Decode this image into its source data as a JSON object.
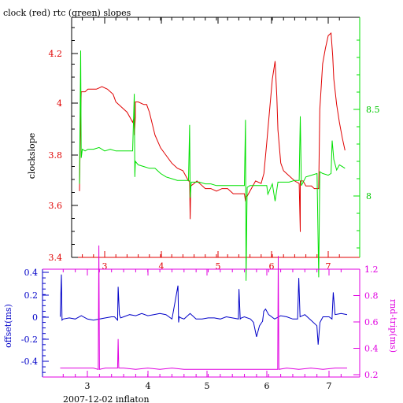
{
  "colors": {
    "clock": "#e00000",
    "rtc": "#00e000",
    "offset": "#0000c8",
    "rndtrip": "#e000e0",
    "axis_black": "#000000"
  },
  "chart_data": [
    {
      "type": "line",
      "title": "clock (red) rtc (green) slopes",
      "ylabel": "clockslope",
      "xlim": [
        2.45,
        7.35
      ],
      "ylim": [
        3.4,
        4.33
      ],
      "x_ticks": [
        "3",
        "4",
        "5",
        "6",
        "7"
      ],
      "y_ticks": [
        "3.4",
        "3.6",
        "3.8",
        "4",
        "4.2"
      ],
      "y2lim": [
        7.5,
        8.85
      ],
      "y2_ticks": [
        "8",
        "8.5"
      ],
      "series": [
        {
          "name": "clock",
          "axis": "left",
          "x": [
            2.55,
            2.57,
            2.57,
            2.58,
            2.6,
            2.65,
            2.7,
            2.75,
            2.85,
            2.95,
            3.05,
            3.15,
            3.2,
            3.3,
            3.4,
            3.45,
            3.5,
            3.53,
            3.53,
            3.55,
            3.55,
            3.6,
            3.7,
            3.75,
            3.8,
            3.9,
            4.0,
            4.1,
            4.2,
            4.3,
            4.4,
            4.5,
            4.52,
            4.53,
            4.54,
            4.6,
            4.65,
            4.7,
            4.8,
            4.9,
            5.0,
            5.1,
            5.2,
            5.3,
            5.4,
            5.5,
            5.52,
            5.53,
            5.55,
            5.6,
            5.7,
            5.8,
            5.85,
            5.9,
            5.92,
            6.0,
            6.05,
            6.08,
            6.1,
            6.15,
            6.2,
            6.3,
            6.4,
            6.48,
            6.5,
            6.5,
            6.55,
            6.6,
            6.7,
            6.75,
            6.8,
            6.83,
            6.85,
            6.9,
            6.95,
            7.0,
            7.05,
            7.08,
            7.1,
            7.15,
            7.2,
            7.25,
            7.3
          ],
          "y": [
            3.66,
            3.99,
            3.96,
            4.05,
            4.05,
            4.05,
            4.06,
            4.06,
            4.06,
            4.07,
            4.06,
            4.04,
            4.01,
            3.99,
            3.97,
            3.95,
            3.93,
            3.95,
            3.88,
            3.95,
            4.01,
            4.01,
            4.0,
            4.0,
            3.97,
            3.88,
            3.83,
            3.8,
            3.77,
            3.75,
            3.74,
            3.7,
            3.7,
            3.55,
            3.68,
            3.69,
            3.7,
            3.69,
            3.67,
            3.67,
            3.66,
            3.67,
            3.67,
            3.65,
            3.65,
            3.65,
            3.62,
            3.64,
            3.64,
            3.66,
            3.7,
            3.69,
            3.73,
            3.85,
            3.9,
            4.1,
            4.17,
            4.03,
            3.9,
            3.77,
            3.74,
            3.72,
            3.7,
            3.69,
            3.5,
            3.7,
            3.7,
            3.68,
            3.68,
            3.67,
            3.67,
            3.67,
            3.98,
            4.16,
            4.22,
            4.27,
            4.28,
            4.19,
            4.1,
            4.0,
            3.93,
            3.87,
            3.82
          ]
        },
        {
          "name": "rtc",
          "axis": "right",
          "x": [
            2.55,
            2.57,
            2.58,
            2.6,
            2.65,
            2.7,
            2.8,
            2.9,
            3.0,
            3.1,
            3.2,
            3.3,
            3.4,
            3.5,
            3.53,
            3.54,
            3.55,
            3.6,
            3.7,
            3.8,
            3.9,
            4.0,
            4.1,
            4.2,
            4.3,
            4.4,
            4.5,
            4.52,
            4.53,
            4.55,
            4.6,
            4.7,
            4.8,
            4.9,
            5.0,
            5.1,
            5.2,
            5.3,
            5.4,
            5.5,
            5.52,
            5.53,
            5.55,
            5.6,
            5.7,
            5.8,
            5.9,
            5.92,
            6.0,
            6.05,
            6.1,
            6.2,
            6.3,
            6.4,
            6.48,
            6.5,
            6.52,
            6.6,
            6.7,
            6.8,
            6.83,
            6.85,
            6.9,
            7.0,
            7.05,
            7.07,
            7.1,
            7.15,
            7.2,
            7.25,
            7.3
          ],
          "y": [
            8.07,
            8.84,
            8.22,
            8.27,
            8.26,
            8.27,
            8.27,
            8.28,
            8.26,
            8.27,
            8.26,
            8.26,
            8.26,
            8.26,
            8.59,
            8.11,
            8.2,
            8.18,
            8.17,
            8.16,
            8.16,
            8.13,
            8.11,
            8.1,
            8.09,
            8.09,
            8.09,
            8.41,
            7.99,
            8.08,
            8.08,
            8.08,
            8.07,
            8.07,
            8.06,
            8.06,
            8.06,
            8.06,
            8.06,
            8.06,
            8.44,
            7.51,
            8.05,
            8.06,
            8.06,
            8.06,
            8.06,
            8.01,
            8.07,
            7.97,
            8.08,
            8.08,
            8.08,
            8.09,
            8.09,
            8.46,
            8.06,
            8.11,
            8.12,
            8.13,
            7.53,
            8.14,
            8.13,
            8.12,
            8.13,
            8.32,
            8.21,
            8.15,
            8.18,
            8.17,
            8.16
          ]
        }
      ]
    },
    {
      "type": "line",
      "xlabel": "2007-12-02 inflaton",
      "ylabel": "offset(ms)",
      "y2label": "rnd-trip(ms)",
      "xlim": [
        2.45,
        7.35
      ],
      "ylim": [
        -0.52,
        0.42
      ],
      "x_ticks": [
        "3",
        "4",
        "5",
        "6",
        "7"
      ],
      "y_ticks": [
        "-0.4",
        "-0.2",
        "0",
        "0.2",
        "0.4"
      ],
      "y2lim": [
        0.2,
        1.2
      ],
      "y2_ticks": [
        "0.2",
        "0.4",
        "0.6",
        "0.8",
        "1",
        "1.2"
      ],
      "series": [
        {
          "name": "offset",
          "axis": "left",
          "x": [
            2.55,
            2.57,
            2.58,
            2.6,
            2.7,
            2.8,
            2.9,
            3.0,
            3.1,
            3.2,
            3.3,
            3.4,
            3.45,
            3.5,
            3.51,
            3.53,
            3.55,
            3.6,
            3.7,
            3.8,
            3.9,
            4.0,
            4.1,
            4.2,
            4.3,
            4.4,
            4.5,
            4.51,
            4.52,
            4.55,
            4.6,
            4.7,
            4.8,
            4.9,
            5.0,
            5.1,
            5.2,
            5.3,
            5.4,
            5.5,
            5.51,
            5.53,
            5.55,
            5.6,
            5.7,
            5.75,
            5.8,
            5.85,
            5.9,
            5.92,
            5.95,
            6.0,
            6.05,
            6.1,
            6.2,
            6.3,
            6.4,
            6.48,
            6.5,
            6.52,
            6.6,
            6.7,
            6.8,
            6.82,
            6.85,
            6.9,
            7.0,
            7.05,
            7.07,
            7.1,
            7.2,
            7.3
          ],
          "y": [
            0.0,
            0.38,
            -0.03,
            -0.02,
            -0.01,
            -0.02,
            0.01,
            -0.02,
            -0.03,
            -0.02,
            -0.01,
            0.0,
            0.0,
            -0.03,
            0.27,
            0.02,
            -0.01,
            0.0,
            0.02,
            0.01,
            0.03,
            0.01,
            0.02,
            0.03,
            0.02,
            -0.02,
            0.28,
            -0.05,
            0.0,
            -0.01,
            -0.02,
            0.03,
            -0.02,
            -0.02,
            -0.01,
            -0.01,
            -0.02,
            0.0,
            -0.01,
            -0.02,
            0.25,
            -0.02,
            -0.01,
            0.0,
            -0.02,
            -0.05,
            -0.18,
            -0.08,
            -0.04,
            0.05,
            0.07,
            0.02,
            0.0,
            -0.02,
            0.01,
            0.0,
            -0.02,
            -0.02,
            0.35,
            0.0,
            0.02,
            -0.03,
            -0.08,
            -0.25,
            -0.05,
            0.0,
            0.0,
            -0.02,
            0.22,
            0.02,
            0.03,
            0.02
          ]
        },
        {
          "name": "rnd-trip",
          "axis": "right",
          "x": [
            2.55,
            2.7,
            2.9,
            3.1,
            3.18,
            3.19,
            3.2,
            3.3,
            3.45,
            3.5,
            3.51,
            3.52,
            3.6,
            3.8,
            4.0,
            4.2,
            4.4,
            4.6,
            4.8,
            5.0,
            5.2,
            5.4,
            5.6,
            5.8,
            6.0,
            6.15,
            6.16,
            6.17,
            6.3,
            6.5,
            6.7,
            6.9,
            7.1,
            7.3
          ],
          "y": [
            0.25,
            0.25,
            0.25,
            0.25,
            0.24,
            1.18,
            0.24,
            0.25,
            0.25,
            0.25,
            0.47,
            0.25,
            0.25,
            0.24,
            0.25,
            0.24,
            0.25,
            0.24,
            0.24,
            0.24,
            0.24,
            0.24,
            0.24,
            0.24,
            0.24,
            0.24,
            1.1,
            0.24,
            0.25,
            0.24,
            0.25,
            0.24,
            0.25,
            0.25
          ]
        }
      ]
    }
  ]
}
